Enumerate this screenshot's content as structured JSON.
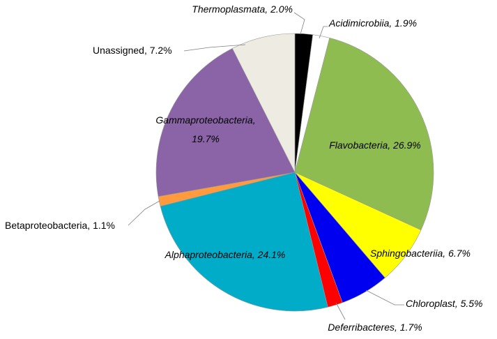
{
  "chart_data": {
    "type": "pie",
    "start_angle_deg": 90,
    "direction": "clockwise",
    "slices": [
      {
        "name": "Thermoplasmata",
        "label": "Thermoplasmata, 2.0%",
        "value": 2.0,
        "color": "#000000",
        "italic": true
      },
      {
        "name": "Acidimicrobiia",
        "label": "Acidimicrobiia, 1.9%",
        "value": 1.9,
        "color": "#ffffff",
        "italic": true
      },
      {
        "name": "Flavobacteria",
        "label": "Flavobacteria, 26.9%",
        "value": 26.9,
        "color": "#8fbc50",
        "italic": true
      },
      {
        "name": "Sphingobacteriia",
        "label": "Sphingobacteriia, 6.7%",
        "value": 6.7,
        "color": "#ffff00",
        "italic": true
      },
      {
        "name": "Chloroplast",
        "label": "Chloroplast, 5.5%",
        "value": 5.5,
        "color": "#0000f0",
        "italic": true
      },
      {
        "name": "Deferribacteres",
        "label": "Deferribacteres, 1.7%",
        "value": 1.7,
        "color": "#ff0000",
        "italic": true
      },
      {
        "name": "Alphaproteobacteria",
        "label": "Alphaproteobacteria, 24.1%",
        "value": 24.1,
        "color": "#00acc8",
        "italic": true
      },
      {
        "name": "Betaproteobacteria",
        "label": "Betaproteobacteria, 1.1%",
        "value": 1.1,
        "color": "#ff9b3c",
        "italic": false
      },
      {
        "name": "Gammaproteobacteria",
        "label_lines": [
          "Gammaproteobacteria,",
          "19.7%"
        ],
        "value": 19.7,
        "color": "#8a64a6",
        "italic": true
      },
      {
        "name": "Unassigned",
        "label": "Unassigned, 7.2%",
        "value": 7.2,
        "color": "#eeece2",
        "italic": false
      }
    ]
  }
}
